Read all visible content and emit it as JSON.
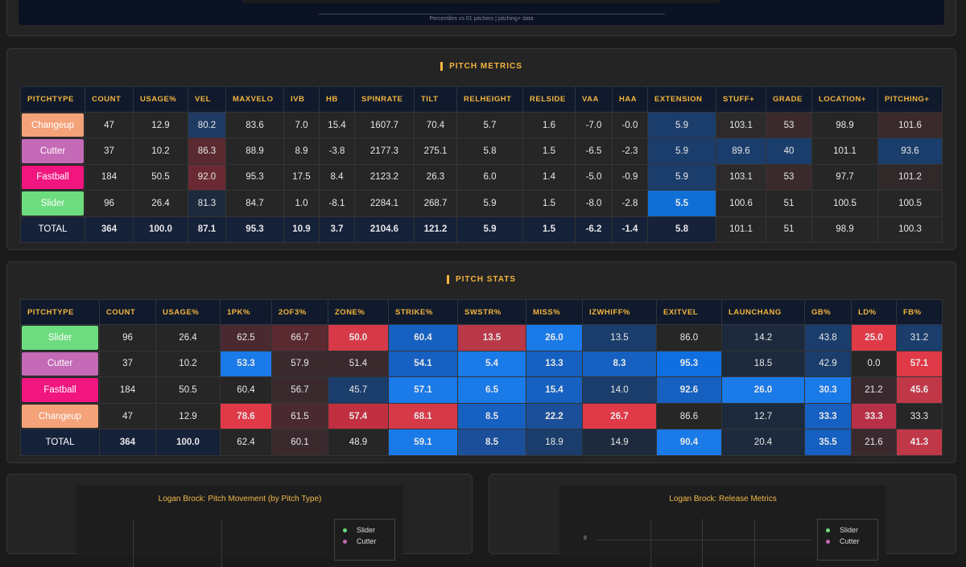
{
  "top_note": "Percentiles vs 01 pitchers | pitching+ data",
  "tables": [
    {
      "title": "PITCH METRICS",
      "headers": [
        "PITCHTYPE",
        "COUNT",
        "USAGE%",
        "VEL",
        "MAXVELO",
        "IVB",
        "HB",
        "SPINRATE",
        "TILT",
        "RELHEIGHT",
        "RELSIDE",
        "VAA",
        "HAA",
        "EXTENSION",
        "STUFF+",
        "GRADE",
        "LOCATION+",
        "PITCHING+"
      ],
      "rows": [
        [
          "Changeup",
          "47",
          "12.9",
          "80.2",
          "83.6",
          "7.0",
          "15.4",
          "1607.7",
          "70.4",
          "5.7",
          "1.6",
          "-7.0",
          "-0.0",
          "5.9",
          "103.1",
          "53",
          "98.9",
          "101.6"
        ],
        [
          "Cutter",
          "37",
          "10.2",
          "86.3",
          "88.9",
          "8.9",
          "-3.8",
          "2177.3",
          "275.1",
          "5.8",
          "1.5",
          "-6.5",
          "-2.3",
          "5.9",
          "89.6",
          "40",
          "101.1",
          "93.6"
        ],
        [
          "Fastball",
          "184",
          "50.5",
          "92.0",
          "95.3",
          "17.5",
          "8.4",
          "2123.2",
          "26.3",
          "6.0",
          "1.4",
          "-5.0",
          "-0.9",
          "5.9",
          "103.1",
          "53",
          "97.7",
          "101.2"
        ],
        [
          "Slider",
          "96",
          "26.4",
          "81.3",
          "84.7",
          "1.0",
          "-8.1",
          "2284.1",
          "268.7",
          "5.9",
          "1.5",
          "-8.0",
          "-2.8",
          "5.5",
          "100.6",
          "51",
          "100.5",
          "100.5"
        ],
        [
          "TOTAL",
          "364",
          "100.0",
          "87.1",
          "95.3",
          "10.9",
          "3.7",
          "2104.6",
          "121.2",
          "5.9",
          "1.5",
          "-6.2",
          "-1.4",
          "5.8",
          "101.1",
          "51",
          "98.9",
          "100.3"
        ]
      ],
      "row_colors": [
        "#f4a27a",
        "#c46ab6",
        "#f0157f",
        "#6ddc7e",
        "#16213a"
      ],
      "cell_colors": [
        [
          "#262626",
          "#262626",
          "#1f3a63",
          "#262626",
          "#262626",
          "#262626",
          "#262626",
          "#262626",
          "#262626",
          "#262626",
          "#262626",
          "#262626",
          "#1b3d6b",
          "#2c2a2a",
          "#3a2a2b",
          "#262626",
          "#3a2a2b"
        ],
        [
          "#262626",
          "#262626",
          "#5a2a31",
          "#262626",
          "#262626",
          "#262626",
          "#262626",
          "#262626",
          "#262626",
          "#262626",
          "#262626",
          "#262626",
          "#1b3d6b",
          "#1b3d6b",
          "#1b3d6b",
          "#262626",
          "#1b3d6b"
        ],
        [
          "#262626",
          "#262626",
          "#6b2a33",
          "#262626",
          "#262626",
          "#262626",
          "#262626",
          "#262626",
          "#262626",
          "#262626",
          "#262626",
          "#262626",
          "#1b3d6b",
          "#2c2a2a",
          "#3a2a2b",
          "#262626",
          "#302829"
        ],
        [
          "#262626",
          "#262626",
          "#1d2a3d",
          "#262626",
          "#262626",
          "#262626",
          "#262626",
          "#262626",
          "#262626",
          "#262626",
          "#262626",
          "#262626",
          "#0f6fd6",
          "#262626",
          "#262626",
          "#262626",
          "#262626"
        ],
        [
          "#16213a",
          "#16213a",
          "#16213a",
          "#16213a",
          "#16213a",
          "#16213a",
          "#16213a",
          "#16213a",
          "#16213a",
          "#16213a",
          "#16213a",
          "#16213a",
          "#16213a",
          "#262626",
          "#262626",
          "#262626",
          "#262626"
        ]
      ]
    },
    {
      "title": "PITCH STATS",
      "headers": [
        "PITCHTYPE",
        "COUNT",
        "USAGE%",
        "1PK%",
        "2OF3%",
        "ZONE%",
        "STRIKE%",
        "SWSTR%",
        "MISS%",
        "IZWHIFF%",
        "EXITVEL",
        "LAUNCHANG",
        "GB%",
        "LD%",
        "FB%"
      ],
      "rows": [
        [
          "Slider",
          "96",
          "26.4",
          "62.5",
          "66.7",
          "50.0",
          "60.4",
          "13.5",
          "26.0",
          "13.5",
          "86.0",
          "14.2",
          "43.8",
          "25.0",
          "31.2"
        ],
        [
          "Cutter",
          "37",
          "10.2",
          "53.3",
          "57.9",
          "51.4",
          "54.1",
          "5.4",
          "13.3",
          "8.3",
          "95.3",
          "18.5",
          "42.9",
          "0.0",
          "57.1"
        ],
        [
          "Fastball",
          "184",
          "50.5",
          "60.4",
          "56.7",
          "45.7",
          "57.1",
          "6.5",
          "15.4",
          "14.0",
          "92.6",
          "26.0",
          "30.3",
          "21.2",
          "45.6"
        ],
        [
          "Changeup",
          "47",
          "12.9",
          "78.6",
          "61.5",
          "57.4",
          "68.1",
          "8.5",
          "22.2",
          "26.7",
          "86.6",
          "12.7",
          "33.3",
          "33.3",
          "33.3"
        ],
        [
          "TOTAL",
          "364",
          "100.0",
          "62.4",
          "60.1",
          "48.9",
          "59.1",
          "8.5",
          "18.9",
          "14.9",
          "90.4",
          "20.4",
          "35.5",
          "21.6",
          "41.3"
        ]
      ],
      "row_colors": [
        "#6ddc7e",
        "#c46ab6",
        "#f0157f",
        "#f4a27a",
        "#16213a"
      ],
      "cell_colors": [
        [
          "#262626",
          "#262626",
          "#4a2a30",
          "#5a2a30",
          "#d63a48",
          "#1560c0",
          "#b83848",
          "#1a7ae8",
          "#1b3d6b",
          "#262626",
          "#1d2a3d",
          "#1b3d6b",
          "#e03a48",
          "#1b3d6b"
        ],
        [
          "#262626",
          "#262626",
          "#1a7ae8",
          "#3a2a2e",
          "#3a2a2e",
          "#1560c0",
          "#1a7ae8",
          "#1560c0",
          "#1560c0",
          "#0f6fe0",
          "#1d2a3d",
          "#1b3d6b",
          "#262626",
          "#e03a48"
        ],
        [
          "#262626",
          "#262626",
          "#262626",
          "#3a2a2e",
          "#1b3d6b",
          "#1a7ae8",
          "#1a7ae8",
          "#1560c0",
          "#1b3d6b",
          "#1560c0",
          "#1a7ae8",
          "#1a7ae8",
          "#3a2a2e",
          "#c03848"
        ],
        [
          "#262626",
          "#262626",
          "#e03a48",
          "#4a2a30",
          "#c03040",
          "#d63a48",
          "#1560c0",
          "#1b4f99",
          "#e03a48",
          "#262626",
          "#1d2a3d",
          "#1560c0",
          "#b83048",
          "#262626"
        ],
        [
          "#16213a",
          "#16213a",
          "#262626",
          "#3a2a2e",
          "#262626",
          "#1a7ae8",
          "#1b4f99",
          "#1b3d6b",
          "#1d2a3d",
          "#1a7ae8",
          "#1d2a3d",
          "#1560c0",
          "#3a2a2e",
          "#c03848"
        ]
      ]
    }
  ],
  "charts": [
    {
      "title": "Logan Brock: Pitch Movement (by Pitch Type)",
      "legend": [
        {
          "name": "Slider",
          "color": "#6ddc7e"
        },
        {
          "name": "Cutter",
          "color": "#c46ab6"
        }
      ]
    },
    {
      "title": "Logan Brock: Release Metrics",
      "legend": [
        {
          "name": "Slider",
          "color": "#6ddc7e"
        },
        {
          "name": "Cutter",
          "color": "#c46ab6"
        }
      ],
      "yticks": [
        8
      ]
    }
  ]
}
